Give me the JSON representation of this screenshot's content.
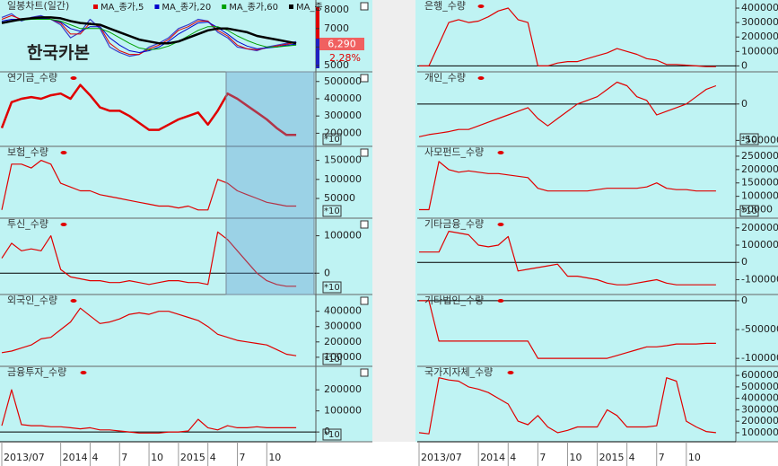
{
  "chart_data": [
    {
      "type": "line",
      "title": "일봉차트(일간)",
      "name": "한국카본",
      "color": "#3a3ac8",
      "values": [
        7600,
        7800,
        7400,
        7600,
        7700,
        7500,
        7200,
        6500,
        6800,
        7500,
        7000,
        6000,
        5700,
        5500,
        5600,
        6000,
        6200,
        6500,
        7000,
        7200,
        7500,
        7400,
        6800,
        6500,
        6000,
        5900,
        5800,
        6000,
        6100,
        6200,
        6290
      ],
      "series": [
        {
          "name": "MA_종가,5",
          "color": "#e00000",
          "values": [
            7500,
            7700,
            7500,
            7500,
            7600,
            7500,
            7300,
            6700,
            6700,
            7300,
            7100,
            6200,
            5800,
            5600,
            5600,
            5900,
            6100,
            6400,
            6900,
            7100,
            7400,
            7400,
            6900,
            6600,
            6100,
            5900,
            5850,
            5950,
            6050,
            6150,
            6250
          ]
        },
        {
          "name": "MA_종가,20",
          "color": "#0000cc",
          "values": [
            7400,
            7500,
            7500,
            7500,
            7550,
            7500,
            7350,
            7000,
            6850,
            7100,
            7100,
            6500,
            6100,
            5800,
            5700,
            5800,
            6000,
            6300,
            6700,
            7000,
            7300,
            7350,
            7050,
            6700,
            6300,
            6050,
            5900,
            5950,
            6000,
            6100,
            6150
          ]
        },
        {
          "name": "MA_종가,60",
          "color": "#00a000",
          "values": [
            7300,
            7400,
            7450,
            7500,
            7500,
            7500,
            7400,
            7200,
            7000,
            7000,
            7000,
            6800,
            6500,
            6200,
            5950,
            5850,
            5900,
            6050,
            6300,
            6600,
            6900,
            7100,
            7100,
            6900,
            6600,
            6350,
            6150,
            6000,
            6000,
            6050,
            6100
          ]
        },
        {
          "name": "MA_종",
          "color": "#000000",
          "values": [
            7300,
            7400,
            7500,
            7550,
            7600,
            7600,
            7550,
            7400,
            7300,
            7250,
            7200,
            7000,
            6800,
            6600,
            6400,
            6300,
            6200,
            6200,
            6300,
            6500,
            6700,
            6900,
            7000,
            7000,
            6900,
            6800,
            6600,
            6500,
            6400,
            6300,
            6200
          ]
        }
      ],
      "ylim": [
        4900,
        8300
      ],
      "yticks": [
        8000,
        7000,
        6000,
        5000
      ],
      "price_label": "6,290",
      "change_label": "2.28%"
    },
    {
      "type": "line",
      "title": "연기금_수량",
      "color": "#e00000",
      "note": "*10",
      "values": [
        230000,
        380000,
        400000,
        410000,
        400000,
        420000,
        430000,
        400000,
        480000,
        420000,
        350000,
        330000,
        330000,
        300000,
        260000,
        220000,
        220000,
        250000,
        280000,
        300000,
        320000,
        250000,
        330000,
        430000,
        400000,
        360000,
        320000,
        280000,
        230000,
        190000,
        190000
      ],
      "ylim": [
        150000,
        530000
      ],
      "yticks": [
        500000,
        400000,
        300000,
        200000
      ]
    },
    {
      "type": "line",
      "title": "보험_수량",
      "color": "#e00000",
      "note": "*10",
      "values": [
        20000,
        140000,
        140000,
        130000,
        150000,
        140000,
        90000,
        80000,
        70000,
        70000,
        60000,
        55000,
        50000,
        45000,
        40000,
        35000,
        30000,
        30000,
        25000,
        30000,
        20000,
        20000,
        100000,
        90000,
        70000,
        60000,
        50000,
        40000,
        35000,
        30000,
        30000
      ],
      "ylim": [
        10000,
        175000
      ],
      "yticks": [
        150000,
        100000,
        50000
      ]
    },
    {
      "type": "line",
      "title": "투신_수량",
      "color": "#e00000",
      "note": "*10",
      "values": [
        40000,
        80000,
        60000,
        65000,
        60000,
        100000,
        10000,
        -10000,
        -15000,
        -20000,
        -20000,
        -25000,
        -25000,
        -20000,
        -25000,
        -30000,
        -25000,
        -20000,
        -20000,
        -25000,
        -25000,
        -30000,
        110000,
        90000,
        60000,
        30000,
        0,
        -20000,
        -30000,
        -35000,
        -35000
      ],
      "ylim": [
        -45000,
        135000
      ],
      "yticks": [
        100000,
        0
      ]
    },
    {
      "type": "line",
      "title": "외국인_수량",
      "color": "#e00000",
      "note": "*10",
      "values": [
        130000,
        140000,
        160000,
        180000,
        220000,
        230000,
        280000,
        330000,
        420000,
        370000,
        320000,
        330000,
        350000,
        380000,
        390000,
        380000,
        400000,
        400000,
        380000,
        360000,
        340000,
        300000,
        250000,
        230000,
        210000,
        200000,
        190000,
        180000,
        150000,
        120000,
        110000
      ],
      "ylim": [
        70000,
        480000
      ],
      "yticks": [
        400000,
        300000,
        200000,
        100000
      ]
    },
    {
      "type": "line",
      "title": "금융투자_수량",
      "color": "#e00000",
      "note": "*10",
      "values": [
        30000,
        200000,
        35000,
        30000,
        30000,
        25000,
        25000,
        20000,
        15000,
        20000,
        10000,
        10000,
        5000,
        0,
        -5000,
        -5000,
        -5000,
        0,
        0,
        5000,
        60000,
        20000,
        10000,
        30000,
        20000,
        20000,
        25000,
        20000,
        20000,
        20000,
        20000
      ],
      "ylim": [
        -25000,
        290000
      ],
      "yticks": [
        200000,
        100000,
        0
      ],
      "xlim": [
        0,
        32
      ],
      "xticks": [
        {
          "value": 0,
          "label": "2013/07"
        },
        {
          "value": 6,
          "label": "2014"
        },
        {
          "value": 9,
          "label": "4"
        },
        {
          "value": 12,
          "label": "7"
        },
        {
          "value": 15,
          "label": "10"
        },
        {
          "value": 18,
          "label": "2015"
        },
        {
          "value": 21,
          "label": "4"
        },
        {
          "value": 24,
          "label": "7"
        },
        {
          "value": 27,
          "label": "10"
        }
      ]
    },
    {
      "type": "line",
      "title": "은행_수량",
      "color": "#e00000",
      "values": [
        0,
        0,
        150000,
        300000,
        320000,
        300000,
        310000,
        340000,
        380000,
        400000,
        320000,
        300000,
        0,
        0,
        20000,
        30000,
        30000,
        50000,
        70000,
        90000,
        120000,
        100000,
        80000,
        50000,
        40000,
        10000,
        10000,
        5000,
        0,
        -5000,
        -5000
      ],
      "ylim": [
        -10000,
        425000
      ],
      "yticks": [
        400000,
        300000,
        200000,
        100000,
        0
      ]
    },
    {
      "type": "line",
      "title": "개인_수량",
      "color": "#e00000",
      "note": "*10",
      "values": [
        -450000,
        -420000,
        -400000,
        -380000,
        -350000,
        -350000,
        -300000,
        -250000,
        -200000,
        -150000,
        -100000,
        -50000,
        -200000,
        -300000,
        -200000,
        -100000,
        0,
        50000,
        100000,
        200000,
        300000,
        250000,
        100000,
        50000,
        -150000,
        -100000,
        -50000,
        0,
        100000,
        200000,
        250000
      ],
      "ylim": [
        -520000,
        380000
      ],
      "yticks": [
        0,
        -500000
      ]
    },
    {
      "type": "line",
      "title": "사모펀드_수량",
      "color": "#e00000",
      "note": "*10",
      "values": [
        50000,
        50000,
        230000,
        200000,
        190000,
        195000,
        190000,
        185000,
        185000,
        180000,
        175000,
        170000,
        130000,
        120000,
        120000,
        120000,
        120000,
        120000,
        125000,
        130000,
        130000,
        130000,
        130000,
        135000,
        150000,
        130000,
        125000,
        125000,
        120000,
        120000,
        120000
      ],
      "ylim": [
        35000,
        270000
      ],
      "yticks": [
        250000,
        200000,
        150000,
        100000,
        50000
      ]
    },
    {
      "type": "line",
      "title": "기타금융_수량",
      "color": "#e00000",
      "values": [
        60000,
        60000,
        60000,
        180000,
        170000,
        160000,
        100000,
        90000,
        100000,
        150000,
        -50000,
        -40000,
        -30000,
        -20000,
        -10000,
        -80000,
        -80000,
        -90000,
        -100000,
        -120000,
        -130000,
        -130000,
        -120000,
        -110000,
        -100000,
        -120000,
        -130000,
        -130000,
        -130000,
        -130000,
        -130000
      ],
      "ylim": [
        -160000,
        230000
      ],
      "yticks": [
        200000,
        100000,
        0,
        -100000
      ]
    },
    {
      "type": "line",
      "title": "기타법인_수량",
      "color": "#e00000",
      "values": [
        0,
        0,
        -7000000,
        -7000000,
        -7000000,
        -7000000,
        -7000000,
        -7000000,
        -7000000,
        -7000000,
        -7000000,
        -7000000,
        -10000000,
        -10000000,
        -10000000,
        -10000000,
        -10000000,
        -10000000,
        -10000000,
        -10000000,
        -9500000,
        -9000000,
        -8500000,
        -8000000,
        -8000000,
        -7800000,
        -7500000,
        -7500000,
        -7500000,
        -7400000,
        -7400000
      ],
      "ylim": [
        -10600000,
        300000
      ],
      "yticks": [
        0,
        -5000000,
        -10000000
      ]
    },
    {
      "type": "line",
      "title": "국가지자체_수량",
      "color": "#e00000",
      "values": [
        100000,
        90000,
        580000,
        560000,
        550000,
        500000,
        480000,
        450000,
        400000,
        350000,
        200000,
        170000,
        250000,
        150000,
        100000,
        120000,
        150000,
        150000,
        150000,
        300000,
        250000,
        150000,
        150000,
        150000,
        160000,
        580000,
        550000,
        200000,
        150000,
        110000,
        100000
      ],
      "ylim": [
        60000,
        640000
      ],
      "yticks": [
        600000,
        500000,
        400000,
        300000,
        200000,
        100000
      ],
      "xlim": [
        0,
        32
      ],
      "xticks": [
        {
          "value": 0,
          "label": "2013/07"
        },
        {
          "value": 6,
          "label": "2014"
        },
        {
          "value": 9,
          "label": "4"
        },
        {
          "value": 12,
          "label": "7"
        },
        {
          "value": 15,
          "label": "10"
        },
        {
          "value": 18,
          "label": "2015"
        },
        {
          "value": 21,
          "label": "4"
        },
        {
          "value": 24,
          "label": "7"
        },
        {
          "value": 27,
          "label": "10"
        }
      ]
    }
  ]
}
